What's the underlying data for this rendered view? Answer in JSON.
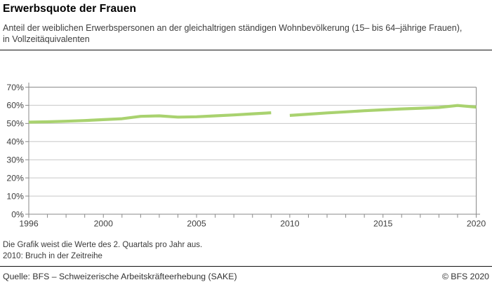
{
  "header": {
    "title": "Erwerbsquote der Frauen",
    "subtitle": "Anteil der weiblichen Erwerbspersonen an der gleichaltrigen ständigen Wohnbevölkerung (15– bis 64–jährige Frauen), in Vollzeitäquivalenten"
  },
  "chart_data": {
    "type": "line",
    "title": "Erwerbsquote der Frauen",
    "x": [
      1996,
      1997,
      1998,
      1999,
      2000,
      2001,
      2002,
      2003,
      2004,
      2005,
      2006,
      2007,
      2008,
      2009,
      2010,
      2011,
      2012,
      2013,
      2014,
      2015,
      2016,
      2017,
      2018,
      2019,
      2020
    ],
    "series": [
      {
        "name": "Erwerbsquote der Frauen in Vollzeitäquivalenten",
        "values": [
          50.7,
          50.9,
          51.2,
          51.6,
          52.1,
          52.6,
          53.9,
          54.2,
          53.5,
          53.7,
          54.2,
          54.7,
          55.3,
          55.9,
          54.4,
          55.1,
          55.8,
          56.4,
          57.0,
          57.5,
          58.0,
          58.4,
          58.8,
          59.9,
          59.0
        ]
      }
    ],
    "break_year": 2010,
    "break_note": "2010: Bruch in der Zeitreihe",
    "ylim": [
      0,
      70
    ],
    "ytick_step": 10,
    "ytick_suffix": "%",
    "ytick_labels": [
      "0%",
      "10%",
      "20%",
      "30%",
      "40%",
      "50%",
      "60%",
      "70%"
    ],
    "xtick_labeled_years": [
      1996,
      2000,
      2005,
      2010,
      2015,
      2020
    ],
    "grid": "horizontal",
    "legend": "none",
    "line_color": "#a9d26f",
    "grid_color": "#c7c7c7",
    "axis_color": "#8a8a8a",
    "label_color": "#3f3f3f"
  },
  "footnotes": [
    "Die Grafik weist die Werte des 2. Quartals pro Jahr aus.",
    "2010: Bruch in der Zeitreihe"
  ],
  "source": {
    "left": "Quelle: BFS – Schweizerische Arbeitskräfteerhebung (SAKE)",
    "right": "© BFS 2020"
  }
}
